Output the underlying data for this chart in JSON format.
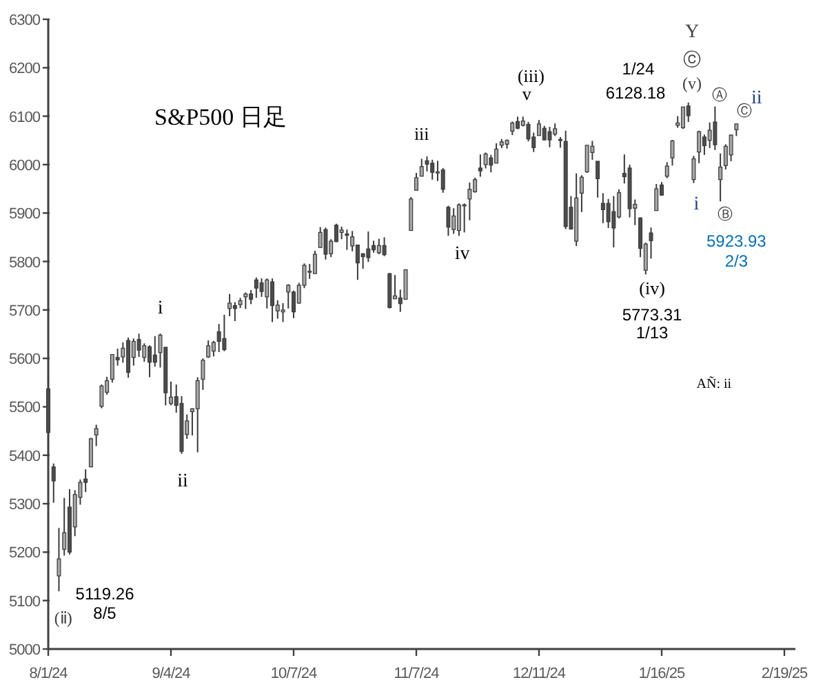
{
  "chart_data": {
    "type": "candlestick",
    "title": "S&P500 日足",
    "categories": [
      "8/1/24",
      null,
      null,
      null,
      null,
      null,
      null,
      null,
      null,
      null,
      null,
      null,
      null,
      null,
      null,
      null,
      null,
      null,
      null,
      null,
      null,
      null,
      null,
      "9/4/24",
      null,
      null,
      null,
      null,
      null,
      null,
      null,
      null,
      null,
      null,
      null,
      null,
      null,
      null,
      null,
      null,
      null,
      null,
      null,
      null,
      null,
      null,
      "10/7/24",
      null,
      null,
      null,
      null,
      null,
      null,
      null,
      null,
      null,
      null,
      null,
      null,
      null,
      null,
      null,
      null,
      null,
      null,
      null,
      null,
      null,
      null,
      "11/7/24",
      null,
      null,
      null,
      null,
      null,
      null,
      null,
      null,
      null,
      null,
      null,
      null,
      null,
      null,
      null,
      null,
      null,
      null,
      null,
      null,
      null,
      null,
      "12/11/24",
      null,
      null,
      null,
      null,
      null,
      null,
      null,
      null,
      null,
      null,
      null,
      null,
      null,
      null,
      null,
      null,
      null,
      null,
      null,
      null,
      null,
      null,
      "1/16/25",
      null,
      null,
      null,
      null,
      null,
      null,
      null,
      null,
      null,
      null,
      null,
      null,
      null,
      null,
      null,
      null,
      null,
      null,
      null,
      null,
      null,
      null,
      "2/19/25"
    ],
    "ohlc": [
      [
        5537,
        5566,
        5410,
        5447
      ],
      [
        5376,
        5383,
        5302,
        5347
      ],
      [
        5151,
        5250,
        5119.26,
        5186
      ],
      [
        5206,
        5312,
        5193,
        5240
      ],
      [
        5293,
        5330,
        5195,
        5200
      ],
      [
        5252,
        5328,
        5233,
        5319
      ],
      [
        5313,
        5350,
        5298,
        5344
      ],
      [
        5351,
        5371,
        5324,
        5344
      ],
      [
        5376,
        5436,
        5376,
        5434
      ],
      [
        5442,
        5463,
        5419,
        5455
      ],
      [
        5501,
        5546,
        5497,
        5543
      ],
      [
        5530,
        5562,
        5525,
        5554
      ],
      [
        5557,
        5608,
        5550,
        5608
      ],
      [
        5602,
        5620,
        5585,
        5597
      ],
      [
        5603,
        5633,
        5591,
        5621
      ],
      [
        5637,
        5643,
        5560,
        5571
      ],
      [
        5602,
        5641,
        5585,
        5635
      ],
      [
        5639,
        5651,
        5603,
        5617
      ],
      [
        5602,
        5631,
        5593,
        5626
      ],
      [
        5624,
        5627,
        5561,
        5592
      ],
      [
        5607,
        5646,
        5583,
        5592
      ],
      [
        5612,
        5651,
        5581,
        5648
      ],
      [
        5623,
        5623,
        5503,
        5529
      ],
      [
        5507,
        5552,
        5503,
        5520
      ],
      [
        5521,
        5546,
        5488,
        5503
      ],
      [
        5507,
        5522,
        5403,
        5408
      ],
      [
        5443,
        5484,
        5434,
        5471
      ],
      [
        5490,
        5497,
        5441,
        5496
      ],
      [
        5496,
        5561,
        5406,
        5554
      ],
      [
        5557,
        5600,
        5535,
        5596
      ],
      [
        5603,
        5637,
        5601,
        5626
      ],
      [
        5615,
        5636,
        5604,
        5633
      ],
      [
        5655,
        5671,
        5613,
        5635
      ],
      [
        5641,
        5690,
        5615,
        5618
      ],
      [
        5703,
        5733,
        5687,
        5714
      ],
      [
        5709,
        5716,
        5677,
        5703
      ],
      [
        5711,
        5725,
        5704,
        5719
      ],
      [
        5727,
        5736,
        5702,
        5733
      ],
      [
        5733,
        5741,
        5712,
        5722
      ],
      [
        5762,
        5767,
        5725,
        5745
      ],
      [
        5756,
        5765,
        5727,
        5738
      ],
      [
        5727,
        5765,
        5703,
        5762
      ],
      [
        5758,
        5765,
        5675,
        5709
      ],
      [
        5698,
        5720,
        5682,
        5710
      ],
      [
        5696,
        5714,
        5675,
        5700
      ],
      [
        5737,
        5753,
        5703,
        5751
      ],
      [
        5737,
        5740,
        5683,
        5696
      ],
      [
        5714,
        5756,
        5713,
        5751
      ],
      [
        5751,
        5796,
        5745,
        5792
      ],
      [
        5778,
        5795,
        5764,
        5780
      ],
      [
        5775,
        5822,
        5775,
        5815
      ],
      [
        5829,
        5871,
        5828,
        5860
      ],
      [
        5866,
        5870,
        5804,
        5815
      ],
      [
        5816,
        5846,
        5809,
        5842
      ],
      [
        5875,
        5878,
        5840,
        5841
      ],
      [
        5860,
        5872,
        5846,
        5865
      ],
      [
        5857,
        5866,
        5824,
        5854
      ],
      [
        5832,
        5863,
        5821,
        5851
      ],
      [
        5834,
        5834,
        5762,
        5797
      ],
      [
        5816,
        5817,
        5785,
        5810
      ],
      [
        5826,
        5862,
        5799,
        5808
      ],
      [
        5833,
        5843,
        5818,
        5824
      ],
      [
        5818,
        5847,
        5815,
        5833
      ],
      [
        5833,
        5850,
        5811,
        5814
      ],
      [
        5775,
        5776,
        5703,
        5705
      ],
      [
        5723,
        5772,
        5723,
        5729
      ],
      [
        5725,
        5742,
        5696,
        5713
      ],
      [
        5722,
        5783,
        5722,
        5783
      ],
      [
        5864,
        5933,
        5864,
        5929
      ],
      [
        5947,
        5983,
        5947,
        5973
      ],
      [
        5976,
        6012,
        5976,
        5996
      ],
      [
        6008,
        6017,
        5986,
        6001
      ],
      [
        6003,
        6010,
        5969,
        5984
      ],
      [
        5985,
        6008,
        5966,
        5985
      ],
      [
        5989,
        5993,
        5942,
        5949
      ],
      [
        5912,
        5915,
        5853,
        5871
      ],
      [
        5866,
        5910,
        5857,
        5894
      ],
      [
        5864,
        5920,
        5853,
        5917
      ],
      [
        5917,
        5920,
        5860,
        5917
      ],
      [
        5929,
        5963,
        5885,
        5949
      ],
      [
        5944,
        5973,
        5942,
        5969
      ],
      [
        5993,
        6021,
        5975,
        5987
      ],
      [
        6000,
        6025,
        5992,
        6022
      ],
      [
        6014,
        6020,
        5984,
        5999
      ],
      [
        6003,
        6044,
        6003,
        6032
      ],
      [
        6040,
        6053,
        6034,
        6047
      ],
      [
        6042,
        6052,
        6033,
        6050
      ],
      [
        6069,
        6089,
        6061,
        6086
      ],
      [
        6089,
        6099,
        6073,
        6075
      ],
      [
        6081,
        6099,
        6079,
        6090
      ],
      [
        6083,
        6088,
        6048,
        6053
      ],
      [
        6057,
        6066,
        6026,
        6035
      ],
      [
        6060,
        6092,
        6060,
        6084
      ],
      [
        6075,
        6080,
        6050,
        6051
      ],
      [
        6068,
        6078,
        6036,
        6051
      ],
      [
        6063,
        6085,
        6059,
        6074
      ],
      [
        6052,
        6057,
        6035,
        6051
      ],
      [
        6048,
        6070,
        5867,
        5872
      ],
      [
        5912,
        5935,
        5866,
        5867
      ],
      [
        5842,
        5982,
        5832,
        5931
      ],
      [
        5941,
        5978,
        5902,
        5974
      ],
      [
        5985,
        6040,
        5983,
        6040
      ],
      [
        6025,
        6049,
        6010,
        6038
      ],
      [
        6007,
        6007,
        5932,
        5971
      ],
      [
        5920,
        5941,
        5879,
        5907
      ],
      [
        5920,
        5929,
        5869,
        5882
      ],
      [
        5903,
        5935,
        5829,
        5869
      ],
      [
        5892,
        5949,
        5889,
        5942
      ],
      [
        5982,
        6021,
        5961,
        5975
      ],
      [
        5993,
        6000,
        5891,
        5909
      ],
      [
        5910,
        5928,
        5875,
        5918
      ],
      [
        5890,
        5891,
        5809,
        5827
      ],
      [
        5782,
        5839,
        5773.31,
        5836
      ],
      [
        5859,
        5870,
        5806,
        5843
      ],
      [
        5905,
        5960,
        5905,
        5950
      ],
      [
        5958,
        5964,
        5936,
        5937
      ],
      [
        5976,
        6005,
        5972,
        5997
      ],
      [
        6014,
        6051,
        5998,
        6049
      ],
      [
        6081,
        6100,
        6076,
        6086
      ],
      [
        6076,
        6119,
        6074,
        6119
      ],
      [
        6121,
        6128.18,
        6088,
        6101
      ],
      [
        5969,
        6018,
        5962,
        6012
      ],
      [
        6026,
        6070,
        6003,
        6068
      ],
      [
        6057,
        6062,
        6020,
        6039
      ],
      [
        6050,
        6087,
        6034,
        6071
      ],
      [
        6088,
        6120,
        6030,
        6041
      ],
      [
        5969,
        6023,
        5923.93,
        5995
      ],
      [
        5998,
        6042,
        5990,
        6038
      ],
      [
        6020,
        6062,
        6007,
        6061
      ],
      [
        6072,
        6084,
        6059,
        6084
      ],
      null,
      null,
      null,
      null,
      null,
      null,
      null,
      null,
      null
    ],
    "colors": [
      "#4d4d4d",
      "#4d4d4d",
      "#a6a6a6",
      "#a6a6a6",
      "#4d4d4d",
      "#a6a6a6",
      "#a6a6a6",
      "#4d4d4d",
      "#a6a6a6",
      "#a6a6a6",
      "#a6a6a6",
      "#a6a6a6",
      "#a6a6a6",
      "#4d4d4d",
      "#a6a6a6",
      "#4d4d4d",
      "#a6a6a6",
      "#4d4d4d",
      "#a6a6a6",
      "#4d4d4d",
      "#4d4d4d",
      "#a6a6a6",
      "#4d4d4d",
      "#a6a6a6",
      "#4d4d4d",
      "#4d4d4d",
      "#a6a6a6",
      "#a6a6a6",
      "#a6a6a6",
      "#a6a6a6",
      "#a6a6a6",
      "#a6a6a6",
      "#4d4d4d",
      "#4d4d4d",
      "#a6a6a6",
      "#4d4d4d",
      "#a6a6a6",
      "#a6a6a6",
      "#4d4d4d",
      "#4d4d4d",
      "#4d4d4d",
      "#a6a6a6",
      "#4d4d4d",
      "#a6a6a6",
      "#a6a6a6",
      "#a6a6a6",
      "#4d4d4d",
      "#a6a6a6",
      "#a6a6a6",
      "#a6a6a6",
      "#a6a6a6",
      "#a6a6a6",
      "#4d4d4d",
      "#a6a6a6",
      "#4d4d4d",
      "#a6a6a6",
      "#4d4d4d",
      "#a6a6a6",
      "#4d4d4d",
      "#4d4d4d",
      "#4d4d4d",
      "#4d4d4d",
      "#a6a6a6",
      "#4d4d4d",
      "#4d4d4d",
      "#a6a6a6",
      "#4d4d4d",
      "#a6a6a6",
      "#a6a6a6",
      "#a6a6a6",
      "#a6a6a6",
      "#4d4d4d",
      "#4d4d4d",
      "#a6a6a6",
      "#4d4d4d",
      "#4d4d4d",
      "#a6a6a6",
      "#a6a6a6",
      "#a6a6a6",
      "#a6a6a6",
      "#a6a6a6",
      "#4d4d4d",
      "#a6a6a6",
      "#4d4d4d",
      "#a6a6a6",
      "#a6a6a6",
      "#a6a6a6",
      "#a6a6a6",
      "#4d4d4d",
      "#a6a6a6",
      "#4d4d4d",
      "#4d4d4d",
      "#a6a6a6",
      "#4d4d4d",
      "#4d4d4d",
      "#a6a6a6",
      "#4d4d4d",
      "#4d4d4d",
      "#4d4d4d",
      "#a6a6a6",
      "#a6a6a6",
      "#a6a6a6",
      "#a6a6a6",
      "#4d4d4d",
      "#4d4d4d",
      "#4d4d4d",
      "#4d4d4d",
      "#a6a6a6",
      "#4d4d4d",
      "#4d4d4d",
      "#a6a6a6",
      "#4d4d4d",
      "#a6a6a6",
      "#4d4d4d",
      "#a6a6a6",
      "#4d4d4d",
      "#a6a6a6",
      "#a6a6a6",
      "#a6a6a6",
      "#a6a6a6",
      "#4d4d4d",
      "#a6a6a6",
      "#a6a6a6",
      "#4d4d4d",
      "#a6a6a6",
      "#4d4d4d",
      "#a6a6a6",
      "#a6a6a6",
      "#a6a6a6",
      "#a6a6a6",
      null,
      null,
      null,
      null,
      null,
      null,
      null,
      null,
      null
    ],
    "ylim": [
      5000,
      6300
    ],
    "yticks": [
      5000,
      5100,
      5200,
      5300,
      5400,
      5500,
      5600,
      5700,
      5800,
      5900,
      6000,
      6100,
      6200,
      6300
    ],
    "annotations": [
      "(ⅱ)",
      "5119.26",
      "8/5",
      "i",
      "ii",
      "iii",
      "iv",
      "(iii)",
      "v",
      "1/24",
      "6128.18",
      "Y",
      "ⓒ",
      "(v)",
      "Ⓐ",
      "Ⓒ",
      "ii",
      "i",
      "Ⓑ",
      "5923.93",
      "2/3",
      "(iv)",
      "5773.31",
      "1/13",
      "AÑ: ii"
    ]
  }
}
